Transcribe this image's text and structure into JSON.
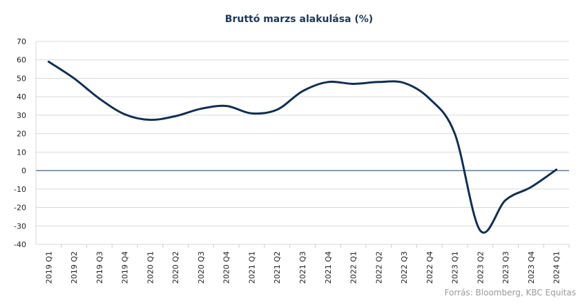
{
  "chart_data": {
    "type": "line",
    "title": "Bruttó marzs alakulása (%)",
    "xlabel": "",
    "ylabel": "",
    "ylim": [
      -40,
      70
    ],
    "yticks": [
      -40,
      -30,
      -20,
      -10,
      0,
      10,
      20,
      30,
      40,
      50,
      60,
      70
    ],
    "grid": "horizontal",
    "categories": [
      "2019 Q1",
      "2019 Q2",
      "2019 Q3",
      "2019 Q4",
      "2020 Q1",
      "2020 Q2",
      "2020 Q3",
      "2020 Q4",
      "2021 Q1",
      "2021 Q2",
      "2021 Q3",
      "2021 Q4",
      "2022 Q1",
      "2022 Q2",
      "2022 Q3",
      "2022 Q4",
      "2023 Q1",
      "2023 Q2",
      "2023 Q3",
      "2023 Q4",
      "2024 Q1"
    ],
    "series": [
      {
        "values": [
          59,
          50,
          39,
          30.5,
          27.5,
          29.5,
          33.5,
          35,
          31,
          33,
          43,
          48,
          47,
          48,
          47.5,
          39,
          20,
          -32.5,
          -16,
          -9,
          0.5
        ]
      }
    ],
    "line_color": "#0d2f55",
    "zero_line_color": "#173a5e"
  },
  "footer": {
    "source": "Forrás: Bloomberg,  KBC Equitas"
  }
}
